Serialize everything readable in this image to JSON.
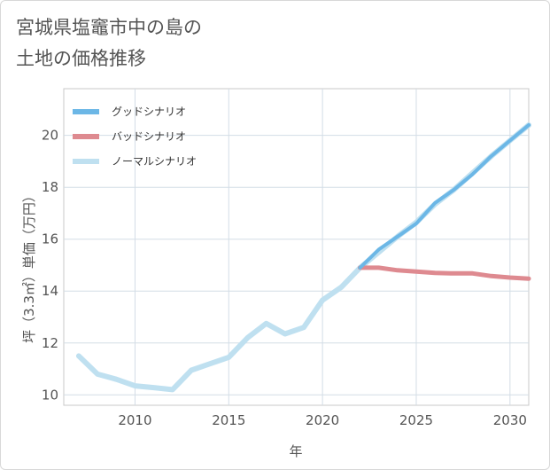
{
  "page": {
    "title_line1": "宮城県塩竈市中の島の",
    "title_line2": "土地の価格推移"
  },
  "chart_data": {
    "type": "line",
    "xlabel": "年",
    "ylabel": "坪（3.3㎡）単価（万円）",
    "xlim": [
      2006.2,
      2031
    ],
    "ylim": [
      9.6,
      21.8
    ],
    "xticks": [
      2010,
      2015,
      2020,
      2025,
      2030
    ],
    "yticks": [
      10,
      12,
      14,
      16,
      18,
      20
    ],
    "grid": true,
    "legend_position": "top-left",
    "series": [
      {
        "name": "グッドシナリオ",
        "color": "#6cb7e6",
        "x": [
          2022,
          2023,
          2024,
          2025,
          2026,
          2027,
          2028,
          2029,
          2030,
          2031
        ],
        "y": [
          14.9,
          15.6,
          16.1,
          16.6,
          17.4,
          17.9,
          18.5,
          19.2,
          19.8,
          20.4
        ]
      },
      {
        "name": "バッドシナリオ",
        "color": "#de8a90",
        "x": [
          2022,
          2023,
          2024,
          2025,
          2026,
          2027,
          2028,
          2029,
          2030,
          2031
        ],
        "y": [
          14.9,
          14.9,
          14.8,
          14.75,
          14.7,
          14.68,
          14.68,
          14.58,
          14.52,
          14.48
        ]
      },
      {
        "name": "ノーマルシナリオ",
        "color": "#bfe0f0",
        "x": [
          2007,
          2008,
          2009,
          2010,
          2011,
          2012,
          2013,
          2014,
          2015,
          2016,
          2017,
          2018,
          2019,
          2020,
          2021,
          2022,
          2023,
          2024,
          2025,
          2026,
          2027,
          2028,
          2029,
          2030,
          2031
        ],
        "y": [
          11.5,
          10.8,
          10.6,
          10.35,
          10.28,
          10.2,
          10.95,
          11.2,
          11.45,
          12.2,
          12.75,
          12.35,
          12.6,
          13.65,
          14.15,
          14.9,
          15.5,
          16.1,
          16.65,
          17.35,
          17.9,
          18.55,
          19.2,
          19.8,
          20.4
        ]
      }
    ]
  }
}
